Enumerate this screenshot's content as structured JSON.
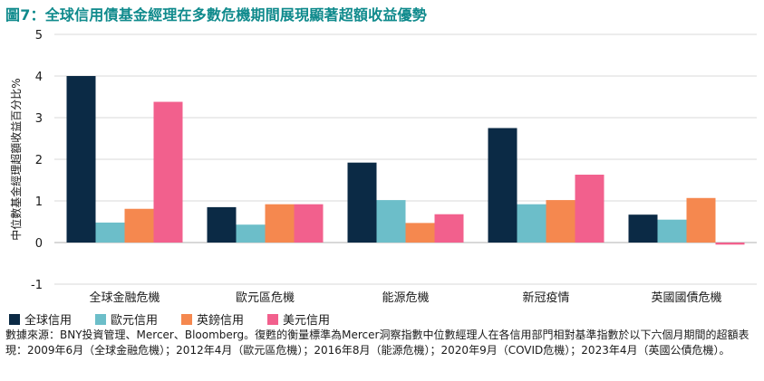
{
  "title": "圖7：全球信用債基金經理在多數危機期間展現顯著超額收益優勢",
  "source_note": "數據來源：BNY投資管理、Mercer、Bloomberg。復甦的衡量標準為Mercer洞察指數中位數經理人在各信用部門相對基準指數於以下六個月期間的超額表現：2009年6月（全球金融危機）；2012年4月（歐元區危機）；2016年8月（能源危機）；2020年9月（COVID危機）；2023年4月（英國公債危機）。",
  "chart_data": {
    "type": "bar",
    "title": "圖7：全球信用債基金經理在多數危機期間展現顯著超額收益優勢",
    "xlabel": "",
    "ylabel": "中位數基金經理超額收益百分比%",
    "ylim": [
      -1,
      5
    ],
    "yticks": [
      -1,
      0,
      1,
      2,
      3,
      4,
      5
    ],
    "grid": true,
    "legend_position": "bottom-left",
    "categories": [
      "全球金融危機",
      "歐元區危機",
      "能源危機",
      "新冠疫情",
      "英國國債危機"
    ],
    "series": [
      {
        "name": "全球信用",
        "color": "#0b2a45",
        "values": [
          4.0,
          0.85,
          1.92,
          2.75,
          0.67
        ]
      },
      {
        "name": "歐元信用",
        "color": "#6cbec9",
        "values": [
          0.48,
          0.43,
          1.02,
          0.92,
          0.55
        ]
      },
      {
        "name": "英鎊信用",
        "color": "#f5884f",
        "values": [
          0.81,
          0.92,
          0.47,
          1.02,
          1.07
        ]
      },
      {
        "name": "美元信用",
        "color": "#f2608d",
        "values": [
          3.38,
          0.92,
          0.68,
          1.63,
          -0.05
        ]
      }
    ]
  }
}
